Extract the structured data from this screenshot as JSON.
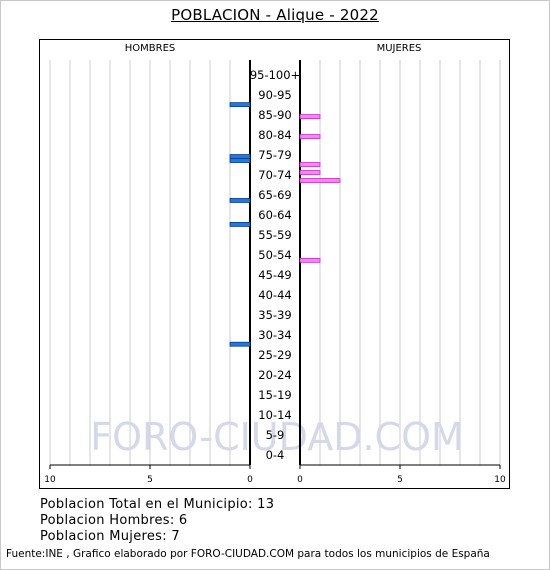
{
  "chart_data": {
    "type": "bar",
    "title": "POBLACION - Alique - 2022",
    "left_header": "HOMBRES",
    "right_header": "MUJERES",
    "watermark": "FORO-CIUDAD.COM",
    "age_groups": [
      "95-100+",
      "90-95",
      "85-90",
      "80-84",
      "75-79",
      "70-74",
      "65-69",
      "60-64",
      "55-59",
      "50-54",
      "45-49",
      "40-44",
      "35-39",
      "30-34",
      "25-29",
      "20-24",
      "15-19",
      "10-14",
      "5-9",
      "0-4"
    ],
    "single_age_bars": {
      "hombres": [
        {
          "age": 90,
          "value": 1
        },
        {
          "age": 77,
          "value": 1
        },
        {
          "age": 76,
          "value": 1
        },
        {
          "age": 66,
          "value": 1
        },
        {
          "age": 60,
          "value": 1
        },
        {
          "age": 30,
          "value": 1
        }
      ],
      "mujeres": [
        {
          "age": 87,
          "value": 1
        },
        {
          "age": 82,
          "value": 1
        },
        {
          "age": 75,
          "value": 1
        },
        {
          "age": 73,
          "value": 1
        },
        {
          "age": 71,
          "value": 2
        },
        {
          "age": 51,
          "value": 1
        }
      ]
    },
    "xlim_left": [
      10,
      0
    ],
    "xlim_right": [
      0,
      10
    ],
    "left_ticks": [
      "10",
      "5",
      "0"
    ],
    "right_ticks": [
      "0",
      "5",
      "10"
    ],
    "colors": {
      "hombres_fill": "#1e78e6",
      "hombres_stroke": "#0a3c8c",
      "mujeres_fill": "#ff80ff",
      "mujeres_stroke": "#c030c0",
      "grid": "#cccccc",
      "watermark": "#d4d8ea"
    },
    "grid": true
  },
  "stats": {
    "total": "Poblacion Total en el Municipio: 13",
    "hombres": "Poblacion Hombres: 6",
    "mujeres": "Poblacion Mujeres: 7"
  },
  "source": "Fuente:INE , Grafico elaborado por FORO-CIUDAD.COM para todos los municipios de España"
}
